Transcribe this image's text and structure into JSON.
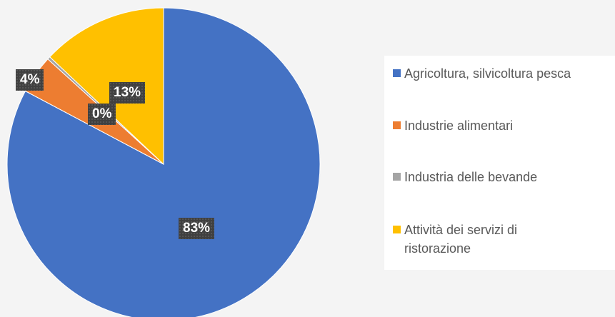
{
  "chart_data": {
    "type": "pie",
    "categories": [
      "Agricoltura, silvicoltura pesca",
      "Industrie alimentari",
      "Industria delle bevande",
      "Attività dei servizi di ristorazione"
    ],
    "values": [
      83,
      4,
      0.3,
      13
    ],
    "data_labels": [
      "83%",
      "4%",
      "0%",
      "13%"
    ],
    "colors": [
      "#4472c4",
      "#ed7d31",
      "#a5a5a5",
      "#ffc000"
    ],
    "legend_position": "right"
  }
}
